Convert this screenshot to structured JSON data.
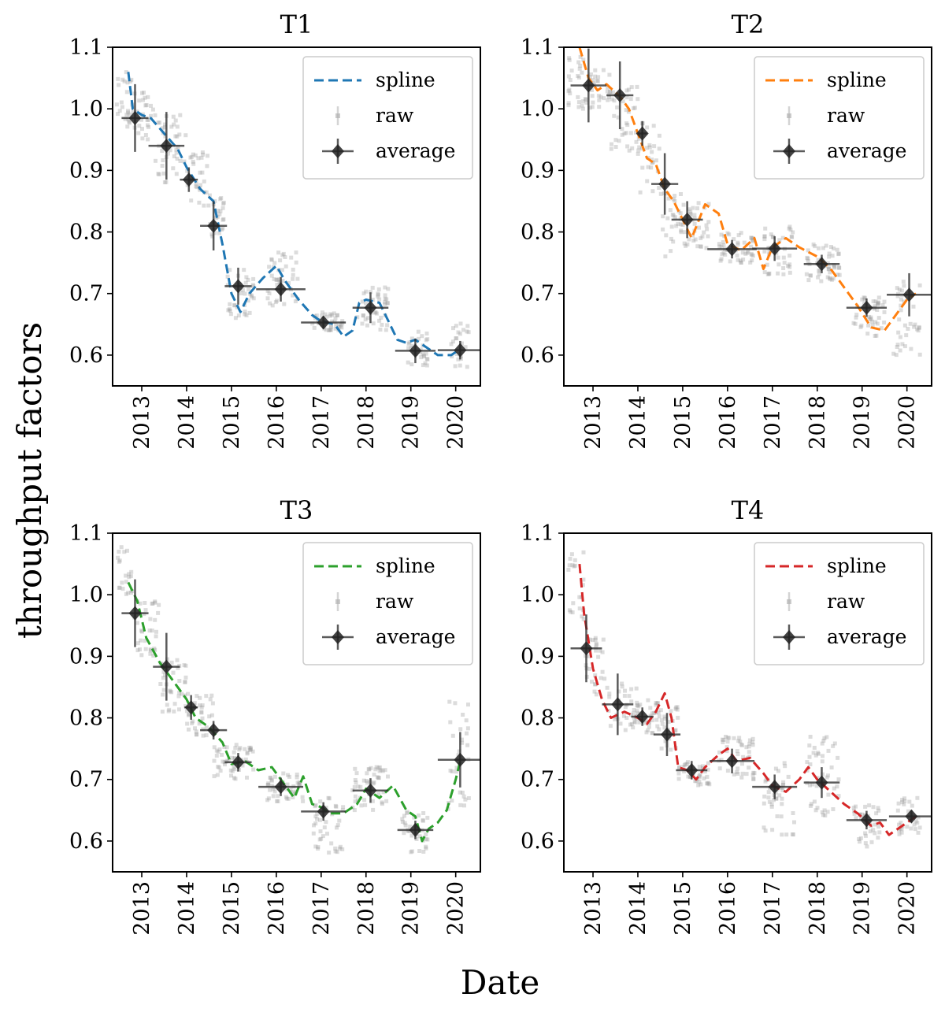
{
  "figure": {
    "ylabel": "throughput factors",
    "xlabel": "Date"
  },
  "chart_data": [
    {
      "type": "line",
      "title": "T1",
      "color": "#1f77b4",
      "ylim": [
        0.55,
        1.1
      ],
      "xlim": [
        2012.35,
        2020.55
      ],
      "yticks": [
        "0.6",
        "0.7",
        "0.8",
        "0.9",
        "1.0",
        "1.1"
      ],
      "xticks": [
        "2013",
        "2014",
        "2015",
        "2016",
        "2017",
        "2018",
        "2019",
        "2020"
      ],
      "legend": [
        "spline",
        "raw",
        "average"
      ],
      "legend_position": "top-right",
      "spline": {
        "x": [
          2012.7,
          2012.8,
          2013.0,
          2013.2,
          2013.5,
          2013.8,
          2014.0,
          2014.3,
          2014.6,
          2014.8,
          2015.0,
          2015.2,
          2015.4,
          2015.7,
          2016.0,
          2016.2,
          2016.5,
          2016.8,
          2017.0,
          2017.3,
          2017.5,
          2017.7,
          2017.85,
          2018.0,
          2018.3,
          2018.5,
          2018.7,
          2018.9,
          2019.1,
          2019.3,
          2019.6,
          2019.9,
          2020.1
        ],
        "y": [
          1.06,
          1.0,
          0.99,
          0.985,
          0.96,
          0.935,
          0.905,
          0.87,
          0.85,
          0.78,
          0.7,
          0.67,
          0.7,
          0.725,
          0.745,
          0.72,
          0.69,
          0.665,
          0.655,
          0.65,
          0.63,
          0.64,
          0.685,
          0.69,
          0.685,
          0.655,
          0.625,
          0.62,
          0.625,
          0.615,
          0.6,
          0.6,
          0.61
        ]
      },
      "average": {
        "x": [
          2012.85,
          2013.55,
          2014.05,
          2014.6,
          2015.15,
          2016.1,
          2017.05,
          2018.1,
          2019.1,
          2020.1
        ],
        "y": [
          0.985,
          0.94,
          0.885,
          0.81,
          0.712,
          0.707,
          0.653,
          0.677,
          0.607,
          0.608
        ],
        "xerr": [
          0.3,
          0.4,
          0.2,
          0.3,
          0.3,
          0.55,
          0.5,
          0.4,
          0.45,
          0.5
        ],
        "yerr": [
          0.055,
          0.055,
          0.02,
          0.04,
          0.03,
          0.02,
          0.01,
          0.025,
          0.02,
          0.015
        ]
      },
      "raw_clusters": [
        {
          "x0": 2012.4,
          "x1": 2012.8,
          "ymin": 0.96,
          "ymax": 1.06
        },
        {
          "x0": 2012.8,
          "x1": 2013.3,
          "ymin": 0.95,
          "ymax": 1.03
        },
        {
          "x0": 2013.3,
          "x1": 2014.0,
          "ymin": 0.88,
          "ymax": 0.99
        },
        {
          "x0": 2014.0,
          "x1": 2014.5,
          "ymin": 0.84,
          "ymax": 0.93
        },
        {
          "x0": 2014.5,
          "x1": 2014.9,
          "ymin": 0.79,
          "ymax": 0.86
        },
        {
          "x0": 2014.9,
          "x1": 2015.5,
          "ymin": 0.66,
          "ymax": 0.74
        },
        {
          "x0": 2015.8,
          "x1": 2016.5,
          "ymin": 0.68,
          "ymax": 0.77
        },
        {
          "x0": 2016.8,
          "x1": 2017.5,
          "ymin": 0.64,
          "ymax": 0.67
        },
        {
          "x0": 2017.8,
          "x1": 2018.5,
          "ymin": 0.64,
          "ymax": 0.71
        },
        {
          "x0": 2018.9,
          "x1": 2019.4,
          "ymin": 0.58,
          "ymax": 0.64
        },
        {
          "x0": 2019.9,
          "x1": 2020.3,
          "ymin": 0.58,
          "ymax": 0.66
        }
      ]
    },
    {
      "type": "line",
      "title": "T2",
      "color": "#ff7f0e",
      "ylim": [
        0.55,
        1.1
      ],
      "xlim": [
        2012.35,
        2020.55
      ],
      "yticks": [
        "0.6",
        "0.7",
        "0.8",
        "0.9",
        "1.0",
        "1.1"
      ],
      "xticks": [
        "2013",
        "2014",
        "2015",
        "2016",
        "2017",
        "2018",
        "2019",
        "2020"
      ],
      "legend": [
        "spline",
        "raw",
        "average"
      ],
      "legend_position": "top-right",
      "spline": {
        "x": [
          2012.7,
          2012.9,
          2013.1,
          2013.3,
          2013.6,
          2013.8,
          2014.0,
          2014.2,
          2014.4,
          2014.6,
          2014.8,
          2015.0,
          2015.2,
          2015.5,
          2015.8,
          2016.0,
          2016.3,
          2016.6,
          2016.8,
          2017.0,
          2017.3,
          2017.6,
          2018.0,
          2018.3,
          2018.6,
          2018.9,
          2019.2,
          2019.5,
          2019.8,
          2020.0,
          2020.2
        ],
        "y": [
          1.1,
          1.05,
          1.03,
          1.04,
          1.02,
          1.0,
          0.96,
          0.92,
          0.91,
          0.87,
          0.85,
          0.82,
          0.79,
          0.845,
          0.83,
          0.78,
          0.77,
          0.79,
          0.74,
          0.775,
          0.79,
          0.775,
          0.76,
          0.74,
          0.71,
          0.68,
          0.645,
          0.64,
          0.67,
          0.69,
          0.7
        ]
      },
      "average": {
        "x": [
          2012.9,
          2013.6,
          2014.1,
          2014.6,
          2015.1,
          2016.1,
          2017.05,
          2018.1,
          2019.1,
          2020.05
        ],
        "y": [
          1.038,
          1.022,
          0.96,
          0.878,
          0.82,
          0.772,
          0.773,
          0.748,
          0.677,
          0.698
        ],
        "xerr": [
          0.4,
          0.3,
          0.1,
          0.3,
          0.35,
          0.55,
          0.5,
          0.4,
          0.45,
          0.5
        ],
        "yerr": [
          0.06,
          0.055,
          0.02,
          0.05,
          0.03,
          0.015,
          0.02,
          0.015,
          0.015,
          0.035
        ]
      },
      "raw_clusters": [
        {
          "x0": 2012.45,
          "x1": 2012.9,
          "ymin": 1.0,
          "ymax": 1.09
        },
        {
          "x0": 2012.9,
          "x1": 2013.4,
          "ymin": 1.0,
          "ymax": 1.07
        },
        {
          "x0": 2013.4,
          "x1": 2014.0,
          "ymin": 0.93,
          "ymax": 1.04
        },
        {
          "x0": 2014.0,
          "x1": 2014.5,
          "ymin": 0.86,
          "ymax": 0.98
        },
        {
          "x0": 2014.5,
          "x1": 2015.0,
          "ymin": 0.76,
          "ymax": 0.88
        },
        {
          "x0": 2015.0,
          "x1": 2015.6,
          "ymin": 0.77,
          "ymax": 0.85
        },
        {
          "x0": 2015.8,
          "x1": 2016.6,
          "ymin": 0.75,
          "ymax": 0.8
        },
        {
          "x0": 2016.8,
          "x1": 2017.5,
          "ymin": 0.73,
          "ymax": 0.81
        },
        {
          "x0": 2017.7,
          "x1": 2018.5,
          "ymin": 0.72,
          "ymax": 0.78
        },
        {
          "x0": 2018.8,
          "x1": 2019.5,
          "ymin": 0.63,
          "ymax": 0.7
        },
        {
          "x0": 2019.7,
          "x1": 2020.3,
          "ymin": 0.6,
          "ymax": 0.73
        }
      ]
    },
    {
      "type": "line",
      "title": "T3",
      "color": "#2ca02c",
      "ylim": [
        0.55,
        1.1
      ],
      "xlim": [
        2012.35,
        2020.55
      ],
      "yticks": [
        "0.6",
        "0.7",
        "0.8",
        "0.9",
        "1.0",
        "1.1"
      ],
      "xticks": [
        "2013",
        "2014",
        "2015",
        "2016",
        "2017",
        "2018",
        "2019",
        "2020"
      ],
      "legend": [
        "spline",
        "raw",
        "average"
      ],
      "legend_position": "top-right",
      "spline": {
        "x": [
          2012.7,
          2012.9,
          2013.1,
          2013.4,
          2013.7,
          2014.0,
          2014.2,
          2014.5,
          2014.8,
          2015.0,
          2015.3,
          2015.6,
          2015.9,
          2016.2,
          2016.4,
          2016.6,
          2016.8,
          2017.0,
          2017.2,
          2017.5,
          2017.8,
          2018.0,
          2018.3,
          2018.6,
          2018.9,
          2019.1,
          2019.25,
          2019.4,
          2019.6,
          2019.8,
          2020.0,
          2020.1
        ],
        "y": [
          1.02,
          0.99,
          0.93,
          0.89,
          0.86,
          0.83,
          0.8,
          0.785,
          0.76,
          0.725,
          0.73,
          0.715,
          0.72,
          0.69,
          0.67,
          0.705,
          0.66,
          0.655,
          0.645,
          0.645,
          0.66,
          0.685,
          0.67,
          0.69,
          0.65,
          0.64,
          0.6,
          0.62,
          0.63,
          0.65,
          0.7,
          0.73
        ]
      },
      "average": {
        "x": [
          2012.85,
          2013.55,
          2014.1,
          2014.6,
          2015.15,
          2016.1,
          2017.05,
          2018.1,
          2019.1,
          2020.1
        ],
        "y": [
          0.97,
          0.883,
          0.817,
          0.78,
          0.728,
          0.688,
          0.648,
          0.682,
          0.618,
          0.732
        ],
        "xerr": [
          0.3,
          0.3,
          0.15,
          0.3,
          0.3,
          0.5,
          0.5,
          0.4,
          0.4,
          0.5
        ],
        "yerr": [
          0.055,
          0.055,
          0.02,
          0.015,
          0.015,
          0.015,
          0.015,
          0.02,
          0.015,
          0.045
        ]
      },
      "raw_clusters": [
        {
          "x0": 2012.45,
          "x1": 2012.8,
          "ymin": 1.0,
          "ymax": 1.08
        },
        {
          "x0": 2012.8,
          "x1": 2013.4,
          "ymin": 0.9,
          "ymax": 0.99
        },
        {
          "x0": 2013.4,
          "x1": 2014.0,
          "ymin": 0.81,
          "ymax": 0.9
        },
        {
          "x0": 2014.0,
          "x1": 2014.6,
          "ymin": 0.77,
          "ymax": 0.84
        },
        {
          "x0": 2014.6,
          "x1": 2015.5,
          "ymin": 0.7,
          "ymax": 0.76
        },
        {
          "x0": 2015.8,
          "x1": 2016.6,
          "ymin": 0.66,
          "ymax": 0.71
        },
        {
          "x0": 2016.8,
          "x1": 2017.5,
          "ymin": 0.58,
          "ymax": 0.67
        },
        {
          "x0": 2017.7,
          "x1": 2018.5,
          "ymin": 0.65,
          "ymax": 0.72
        },
        {
          "x0": 2018.8,
          "x1": 2019.4,
          "ymin": 0.58,
          "ymax": 0.65
        },
        {
          "x0": 2019.8,
          "x1": 2020.3,
          "ymin": 0.65,
          "ymax": 0.83
        }
      ]
    },
    {
      "type": "line",
      "title": "T4",
      "color": "#d62728",
      "ylim": [
        0.55,
        1.1
      ],
      "xlim": [
        2012.35,
        2020.55
      ],
      "yticks": [
        "0.6",
        "0.7",
        "0.8",
        "0.9",
        "1.0",
        "1.1"
      ],
      "xticks": [
        "2013",
        "2014",
        "2015",
        "2016",
        "2017",
        "2018",
        "2019",
        "2020"
      ],
      "legend": [
        "spline",
        "raw",
        "average"
      ],
      "legend_position": "top-right",
      "spline": {
        "x": [
          2012.7,
          2012.8,
          2013.0,
          2013.2,
          2013.4,
          2013.7,
          2014.0,
          2014.2,
          2014.4,
          2014.6,
          2014.75,
          2014.9,
          2015.1,
          2015.3,
          2015.5,
          2015.8,
          2016.0,
          2016.2,
          2016.5,
          2016.8,
          2017.0,
          2017.3,
          2017.6,
          2017.8,
          2018.0,
          2018.3,
          2018.6,
          2018.9,
          2019.2,
          2019.4,
          2019.6,
          2019.8,
          2020.0,
          2020.2
        ],
        "y": [
          1.05,
          0.97,
          0.88,
          0.83,
          0.8,
          0.81,
          0.8,
          0.79,
          0.81,
          0.84,
          0.8,
          0.72,
          0.715,
          0.7,
          0.72,
          0.74,
          0.75,
          0.73,
          0.735,
          0.71,
          0.69,
          0.68,
          0.7,
          0.72,
          0.7,
          0.68,
          0.66,
          0.645,
          0.625,
          0.63,
          0.61,
          0.62,
          0.63,
          0.64
        ]
      },
      "average": {
        "x": [
          2012.85,
          2013.55,
          2014.1,
          2014.65,
          2015.2,
          2016.1,
          2017.05,
          2018.1,
          2019.1,
          2020.1
        ],
        "y": [
          0.913,
          0.822,
          0.802,
          0.773,
          0.715,
          0.73,
          0.688,
          0.695,
          0.634,
          0.64
        ],
        "xerr": [
          0.35,
          0.35,
          0.25,
          0.3,
          0.35,
          0.5,
          0.5,
          0.4,
          0.45,
          0.5
        ],
        "yerr": [
          0.055,
          0.05,
          0.015,
          0.035,
          0.015,
          0.02,
          0.02,
          0.025,
          0.015,
          0.01
        ]
      },
      "raw_clusters": [
        {
          "x0": 2012.45,
          "x1": 2012.8,
          "ymin": 0.96,
          "ymax": 1.07
        },
        {
          "x0": 2012.8,
          "x1": 2013.3,
          "ymin": 0.83,
          "ymax": 0.93
        },
        {
          "x0": 2013.3,
          "x1": 2014.0,
          "ymin": 0.78,
          "ymax": 0.86
        },
        {
          "x0": 2014.0,
          "x1": 2014.5,
          "ymin": 0.77,
          "ymax": 0.83
        },
        {
          "x0": 2014.5,
          "x1": 2014.9,
          "ymin": 0.74,
          "ymax": 0.82
        },
        {
          "x0": 2014.9,
          "x1": 2015.6,
          "ymin": 0.69,
          "ymax": 0.73
        },
        {
          "x0": 2015.8,
          "x1": 2016.6,
          "ymin": 0.7,
          "ymax": 0.77
        },
        {
          "x0": 2016.8,
          "x1": 2017.5,
          "ymin": 0.61,
          "ymax": 0.73
        },
        {
          "x0": 2017.7,
          "x1": 2018.5,
          "ymin": 0.64,
          "ymax": 0.77
        },
        {
          "x0": 2018.8,
          "x1": 2019.4,
          "ymin": 0.59,
          "ymax": 0.66
        },
        {
          "x0": 2019.8,
          "x1": 2020.3,
          "ymin": 0.61,
          "ymax": 0.67
        }
      ]
    }
  ]
}
